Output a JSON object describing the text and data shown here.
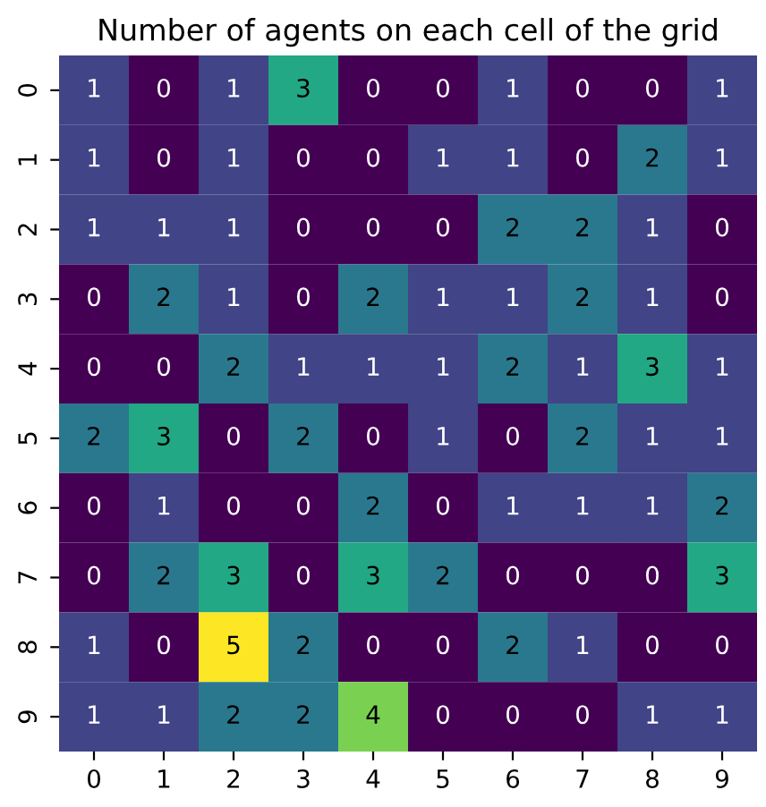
{
  "chart_data": {
    "type": "heatmap",
    "title": "Number of agents on each cell of the grid",
    "categories": [
      "0",
      "1",
      "2",
      "3",
      "4",
      "5",
      "6",
      "7",
      "8",
      "9"
    ],
    "y_categories": [
      "0",
      "1",
      "2",
      "3",
      "4",
      "5",
      "6",
      "7",
      "8",
      "9"
    ],
    "cells": [
      [
        1,
        0,
        1,
        3,
        0,
        0,
        1,
        0,
        0,
        1
      ],
      [
        1,
        0,
        1,
        0,
        0,
        1,
        1,
        0,
        2,
        1
      ],
      [
        1,
        1,
        1,
        0,
        0,
        0,
        2,
        2,
        1,
        0
      ],
      [
        0,
        2,
        1,
        0,
        2,
        1,
        1,
        2,
        1,
        0
      ],
      [
        0,
        0,
        2,
        1,
        1,
        1,
        2,
        1,
        3,
        1
      ],
      [
        2,
        3,
        0,
        2,
        0,
        1,
        0,
        2,
        1,
        1
      ],
      [
        0,
        1,
        0,
        0,
        2,
        0,
        1,
        1,
        1,
        2
      ],
      [
        0,
        2,
        3,
        0,
        3,
        2,
        0,
        0,
        0,
        3
      ],
      [
        1,
        0,
        5,
        2,
        0,
        0,
        2,
        1,
        0,
        0
      ],
      [
        1,
        1,
        2,
        2,
        4,
        0,
        0,
        0,
        1,
        1
      ]
    ],
    "data_labels": true
  }
}
